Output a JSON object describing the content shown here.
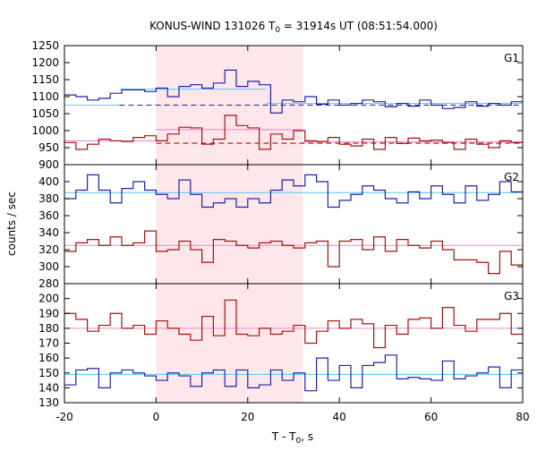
{
  "title": {
    "prefix": "KONUS-WIND 131026 T",
    "sub": "0",
    "suffix": " = 31914s UT (08:51:54.000)"
  },
  "xlabel": {
    "prefix": "T - T",
    "sub": "0",
    "suffix": ", s"
  },
  "ylabel": "counts / sec",
  "colors": {
    "background_series": "#2222aa",
    "hard_series": "#aa1111",
    "fit_cyan": "#66ccee",
    "fit_pink": "#ee88cc",
    "interval_fill": "#fde7ea"
  },
  "chart_data": {
    "type": "line",
    "step": true,
    "x_range": [
      -20,
      80
    ],
    "x_ticks": [
      -20,
      0,
      20,
      40,
      60,
      80
    ],
    "highlight_interval": [
      0,
      32
    ],
    "panels": [
      {
        "name": "G1",
        "ylim": [
          900,
          1250
        ],
        "y_ticks": [
          900,
          950,
          1000,
          1050,
          1100,
          1150,
          1200,
          1250
        ],
        "series": [
          {
            "color": "#2222aa",
            "x": [
              -20,
              -17.5,
              -15,
              -12.5,
              -10,
              -7.5,
              -5,
              -2.5,
              0,
              2.5,
              5,
              7.5,
              10,
              12.5,
              15,
              17.5,
              20,
              22.5,
              25,
              27.5,
              30,
              32.5,
              35,
              37.5,
              40,
              42.5,
              45,
              47.5,
              50,
              52.5,
              55,
              57.5,
              60,
              62.5,
              65,
              67.5,
              70,
              72.5,
              75,
              77.5
            ],
            "y": [
              1105,
              1100,
              1090,
              1095,
              1110,
              1120,
              1120,
              1115,
              1125,
              1100,
              1130,
              1135,
              1125,
              1140,
              1178,
              1130,
              1145,
              1135,
              1052,
              1090,
              1085,
              1100,
              1078,
              1090,
              1075,
              1080,
              1090,
              1085,
              1070,
              1080,
              1072,
              1090,
              1075,
              1065,
              1068,
              1085,
              1072,
              1080,
              1075,
              1085
            ]
          },
          {
            "color": "#aa1111",
            "x": [
              -20,
              -17.5,
              -15,
              -12.5,
              -10,
              -7.5,
              -5,
              -2.5,
              0,
              2.5,
              5,
              7.5,
              10,
              12.5,
              15,
              17.5,
              20,
              22.5,
              25,
              27.5,
              30,
              32.5,
              35,
              37.5,
              40,
              42.5,
              45,
              47.5,
              50,
              52.5,
              55,
              57.5,
              60,
              62.5,
              65,
              67.5,
              70,
              72.5,
              75,
              77.5
            ],
            "y": [
              965,
              945,
              960,
              975,
              970,
              968,
              980,
              985,
              970,
              990,
              1010,
              1008,
              960,
              975,
              1045,
              1015,
              1008,
              945,
              990,
              975,
              1000,
              970,
              968,
              980,
              960,
              955,
              975,
              945,
              980,
              962,
              978,
              970,
              972,
              965,
              945,
              975,
              960,
              950,
              970,
              965
            ]
          }
        ],
        "fits": [
          {
            "color": "#66ccee",
            "x": [
              -20,
              -8
            ],
            "y": 1075,
            "dashed": false
          },
          {
            "color": "#66ccee",
            "x": [
              -8,
              24
            ],
            "y": 1122,
            "dashed": false
          },
          {
            "color": "#66ccee",
            "x": [
              24,
              80
            ],
            "y": 1080,
            "dashed": false
          },
          {
            "color": "#2222aa",
            "x": [
              -8,
              80
            ],
            "y": 1075,
            "dashed": true
          },
          {
            "color": "#ee88cc",
            "x": [
              -20,
              0
            ],
            "y": 970,
            "dashed": false
          },
          {
            "color": "#ee88cc",
            "x": [
              0,
              32
            ],
            "y": 1003,
            "dashed": false
          },
          {
            "color": "#ee88cc",
            "x": [
              32,
              80
            ],
            "y": 967,
            "dashed": false
          },
          {
            "color": "#aa1111",
            "x": [
              0,
              80
            ],
            "y": 963,
            "dashed": true
          }
        ]
      },
      {
        "name": "G2",
        "ylim": [
          280,
          420
        ],
        "y_ticks": [
          280,
          300,
          320,
          340,
          360,
          380,
          400
        ],
        "series": [
          {
            "color": "#2222aa",
            "x": [
              -20,
              -17.5,
              -15,
              -12.5,
              -10,
              -7.5,
              -5,
              -2.5,
              0,
              2.5,
              5,
              7.5,
              10,
              12.5,
              15,
              17.5,
              20,
              22.5,
              25,
              27.5,
              30,
              32.5,
              35,
              37.5,
              40,
              42.5,
              45,
              47.5,
              50,
              52.5,
              55,
              57.5,
              60,
              62.5,
              65,
              67.5,
              70,
              72.5,
              75,
              77.5
            ],
            "y": [
              380,
              390,
              408,
              390,
              375,
              392,
              400,
              390,
              385,
              380,
              402,
              385,
              370,
              375,
              380,
              370,
              380,
              375,
              390,
              402,
              395,
              408,
              400,
              370,
              378,
              385,
              395,
              390,
              380,
              375,
              388,
              380,
              395,
              385,
              375,
              395,
              378,
              385,
              400,
              388
            ]
          },
          {
            "color": "#aa1111",
            "x": [
              -20,
              -17.5,
              -15,
              -12.5,
              -10,
              -7.5,
              -5,
              -2.5,
              0,
              2.5,
              5,
              7.5,
              10,
              12.5,
              15,
              17.5,
              20,
              22.5,
              25,
              27.5,
              30,
              32.5,
              35,
              37.5,
              40,
              42.5,
              45,
              47.5,
              50,
              52.5,
              55,
              57.5,
              60,
              62.5,
              65,
              67.5,
              70,
              72.5,
              75,
              77.5
            ],
            "y": [
              318,
              328,
              332,
              325,
              335,
              325,
              328,
              342,
              318,
              320,
              330,
              320,
              305,
              332,
              330,
              325,
              322,
              328,
              330,
              325,
              322,
              328,
              330,
              300,
              330,
              332,
              320,
              335,
              318,
              332,
              325,
              322,
              330,
              320,
              308,
              308,
              305,
              292,
              318,
              302
            ]
          }
        ],
        "fits": [
          {
            "color": "#66ccee",
            "x": [
              -20,
              80
            ],
            "y": 387,
            "dashed": false
          },
          {
            "color": "#ee88cc",
            "x": [
              -20,
              80
            ],
            "y": 325,
            "dashed": false
          }
        ]
      },
      {
        "name": "G3",
        "ylim": [
          130,
          210
        ],
        "y_ticks": [
          130,
          140,
          150,
          160,
          170,
          180,
          190,
          200
        ],
        "series": [
          {
            "color": "#2222aa",
            "x": [
              -20,
              -17.5,
              -15,
              -12.5,
              -10,
              -7.5,
              -5,
              -2.5,
              0,
              2.5,
              5,
              7.5,
              10,
              12.5,
              15,
              17.5,
              20,
              22.5,
              25,
              27.5,
              30,
              32.5,
              35,
              37.5,
              40,
              42.5,
              45,
              47.5,
              50,
              52.5,
              55,
              57.5,
              60,
              62.5,
              65,
              67.5,
              70,
              72.5,
              75,
              77.5
            ],
            "y": [
              142,
              152,
              153,
              140,
              150,
              152,
              150,
              148,
              145,
              150,
              148,
              141,
              150,
              152,
              141,
              152,
              140,
              142,
              152,
              145,
              150,
              138,
              160,
              145,
              155,
              140,
              155,
              157,
              162,
              146,
              147,
              146,
              145,
              158,
              146,
              148,
              150,
              154,
              140,
              152
            ]
          },
          {
            "color": "#aa1111",
            "x": [
              -20,
              -17.5,
              -15,
              -12.5,
              -10,
              -7.5,
              -5,
              -2.5,
              0,
              2.5,
              5,
              7.5,
              10,
              12.5,
              15,
              17.5,
              20,
              22.5,
              25,
              27.5,
              30,
              32.5,
              35,
              37.5,
              40,
              42.5,
              45,
              47.5,
              50,
              52.5,
              55,
              57.5,
              60,
              62.5,
              65,
              67.5,
              70,
              72.5,
              75,
              77.5
            ],
            "y": [
              190,
              186,
              178,
              182,
              190,
              180,
              182,
              176,
              185,
              180,
              176,
              172,
              188,
              175,
              199,
              176,
              175,
              180,
              176,
              178,
              182,
              170,
              178,
              185,
              180,
              186,
              183,
              167,
              182,
              176,
              186,
              187,
              180,
              194,
              182,
              178,
              186,
              186,
              190,
              176
            ]
          }
        ],
        "fits": [
          {
            "color": "#66ccee",
            "x": [
              -20,
              80
            ],
            "y": 149,
            "dashed": false
          },
          {
            "color": "#ee88cc",
            "x": [
              -20,
              80
            ],
            "y": 180,
            "dashed": false
          }
        ]
      }
    ]
  }
}
